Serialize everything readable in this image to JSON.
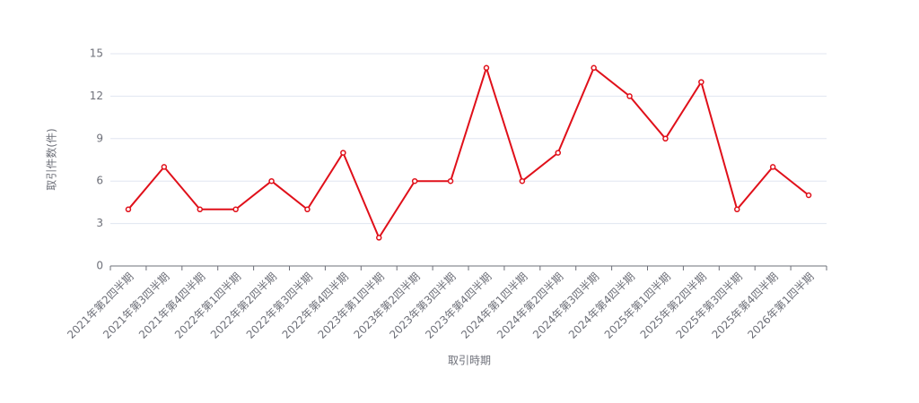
{
  "chart_data": {
    "type": "line",
    "x_label": "取引時期",
    "y_label": "取引件数(件)",
    "categories": [
      "2021年第2四半期",
      "2021年第3四半期",
      "2021年第4四半期",
      "2022年第1四半期",
      "2022年第2四半期",
      "2022年第3四半期",
      "2022年第4四半期",
      "2023年第1四半期",
      "2023年第2四半期",
      "2023年第3四半期",
      "2023年第4四半期",
      "2024年第1四半期",
      "2024年第2四半期",
      "2024年第3四半期",
      "2024年第4四半期",
      "2025年第1四半期",
      "2025年第2四半期",
      "2025年第3四半期",
      "2025年第4四半期",
      "2026年第1四半期"
    ],
    "series": [
      {
        "name": "取引件数",
        "color": "#e0101a",
        "values": [
          4,
          7,
          4,
          4,
          6,
          4,
          8,
          2,
          6,
          6,
          14,
          6,
          8,
          14,
          12,
          9,
          13,
          4,
          7,
          5
        ]
      }
    ],
    "ylim": [
      0,
      15
    ],
    "yticks": [
      0,
      3,
      6,
      9,
      12,
      15
    ],
    "grid": true
  }
}
